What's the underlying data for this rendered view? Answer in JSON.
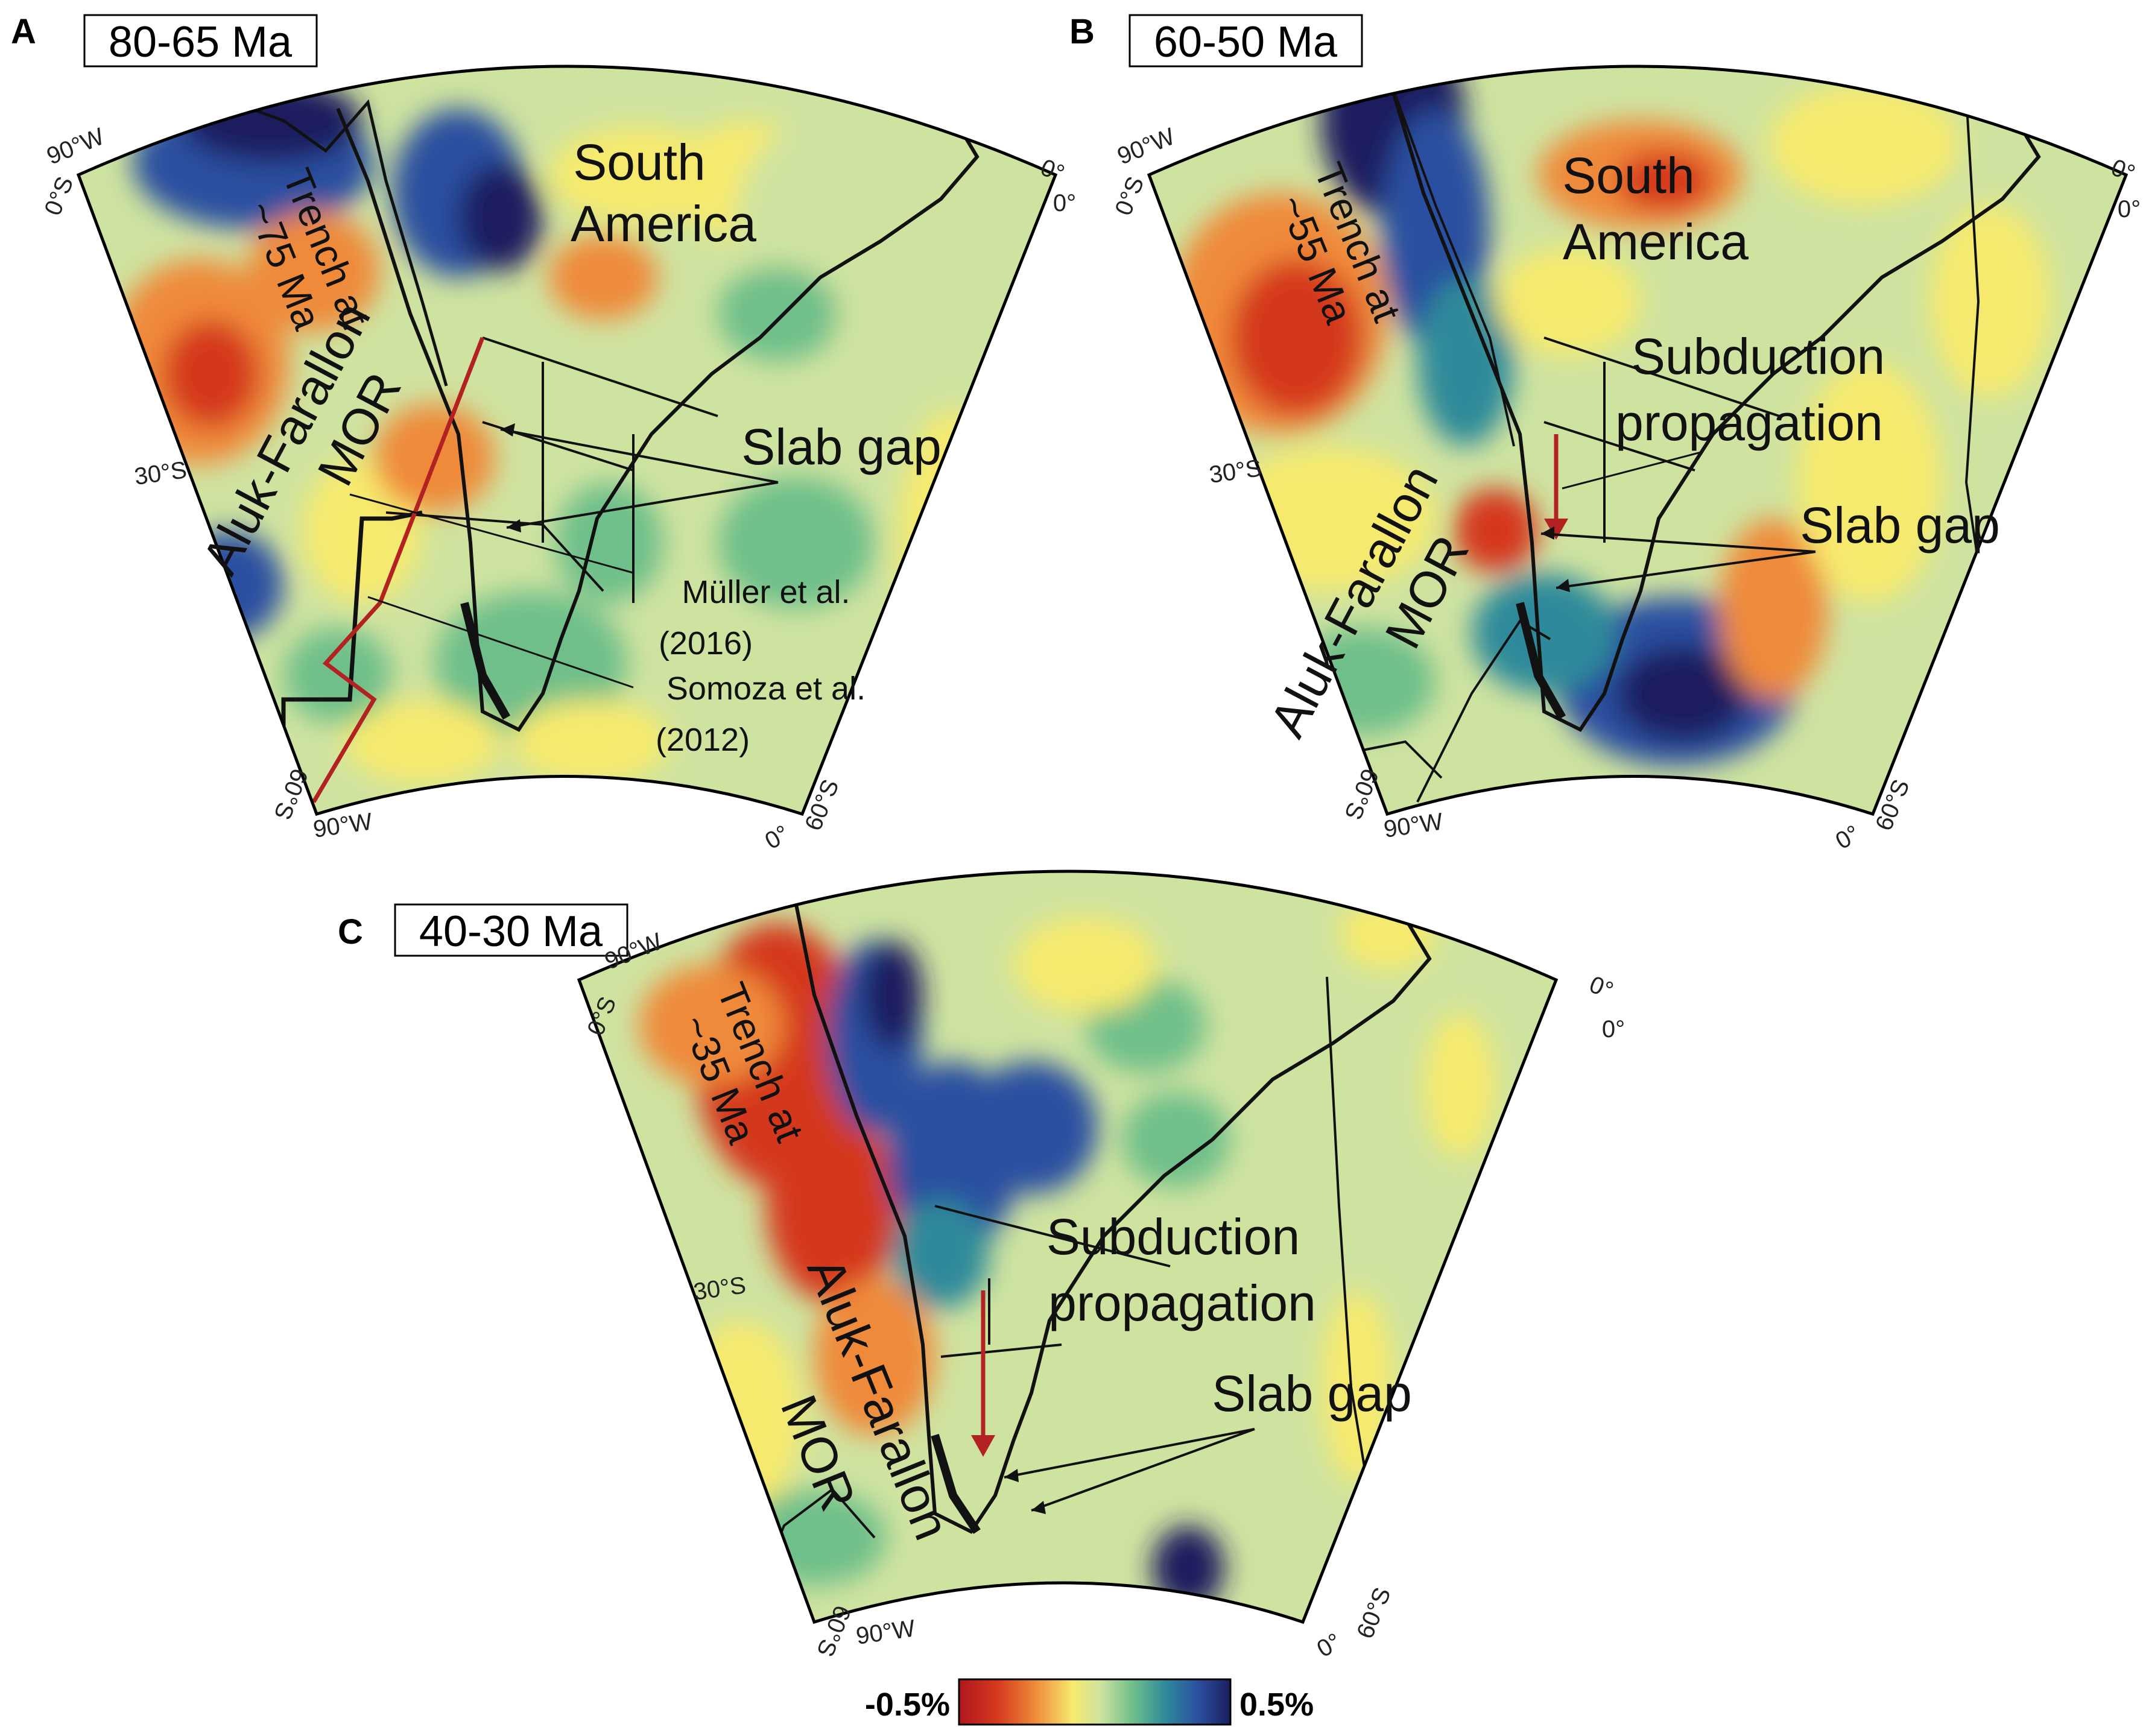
{
  "colors": {
    "background": "#cfe3a0",
    "red": "#d4381d",
    "orange": "#ef8a3a",
    "yellow": "#f6ea6e",
    "lightgreen": "#cfe3a0",
    "green": "#6fbf8a",
    "teal": "#2f8a9a",
    "blue": "#2c4fa0",
    "darkblue": "#1b1f5e",
    "plate_line": "#111111",
    "highlight_red": "#b22222"
  },
  "panels": [
    {
      "letter": "A",
      "title": "80-65 Ma",
      "labels": {
        "continent": [
          "South",
          "America"
        ],
        "trench": [
          "Trench at",
          "~75 Ma"
        ],
        "mor": [
          "Aluk-Farallon",
          "MOR"
        ],
        "slab_gap": "Slab gap",
        "ref1": [
          "Müller et al.",
          "(2016)"
        ],
        "ref2": [
          "Somoza et al.",
          "(2012)"
        ]
      },
      "coords": {
        "nw_lon": "90°W",
        "nw_lat": "0°S",
        "ne_lat": "0°",
        "ne_lon": "0°",
        "sw_lat": "60°S",
        "sw_lon": "90°W",
        "se_lon": "0°",
        "se_lat": "60°S",
        "mid_lat": "30°S"
      }
    },
    {
      "letter": "B",
      "title": "60-50 Ma",
      "labels": {
        "continent": [
          "South",
          "America"
        ],
        "trench": [
          "Trench at",
          "~55 Ma"
        ],
        "subduction": [
          "Subduction",
          "propagation"
        ],
        "slab_gap": "Slab gap",
        "mor": [
          "Aluk-Farallon",
          "MOR"
        ]
      },
      "coords": {
        "nw_lon": "90°W",
        "nw_lat": "0°S",
        "ne_lat": "0°",
        "ne_lon": "0°",
        "sw_lat": "60°S",
        "sw_lon": "90°W",
        "se_lon": "0°",
        "se_lat": "60°S",
        "mid_lat": "30°S"
      }
    },
    {
      "letter": "C",
      "title": "40-30 Ma",
      "labels": {
        "trench": [
          "Trench at",
          "~35 Ma"
        ],
        "subduction": [
          "Subduction",
          "propagation"
        ],
        "slab_gap": "Slab gap",
        "mor": [
          "Aluk-Farallon",
          "MOR"
        ]
      },
      "coords": {
        "nw_lon": "90°W",
        "nw_lat": "0°S",
        "ne_lat": "0°",
        "ne_lon": "0°",
        "sw_lat": "60°S",
        "sw_lon": "90°W",
        "se_lon": "0°",
        "se_lat": "60°S",
        "mid_lat": "30°S"
      }
    }
  ],
  "colorbar": {
    "min_label": "-0.5%",
    "max_label": "0.5%",
    "colors": [
      "#b0171f",
      "#d4381d",
      "#ef8a3a",
      "#f6ea6e",
      "#cfe3a0",
      "#6fbf8a",
      "#2f8a9a",
      "#2c4fa0",
      "#1b1f5e"
    ]
  }
}
